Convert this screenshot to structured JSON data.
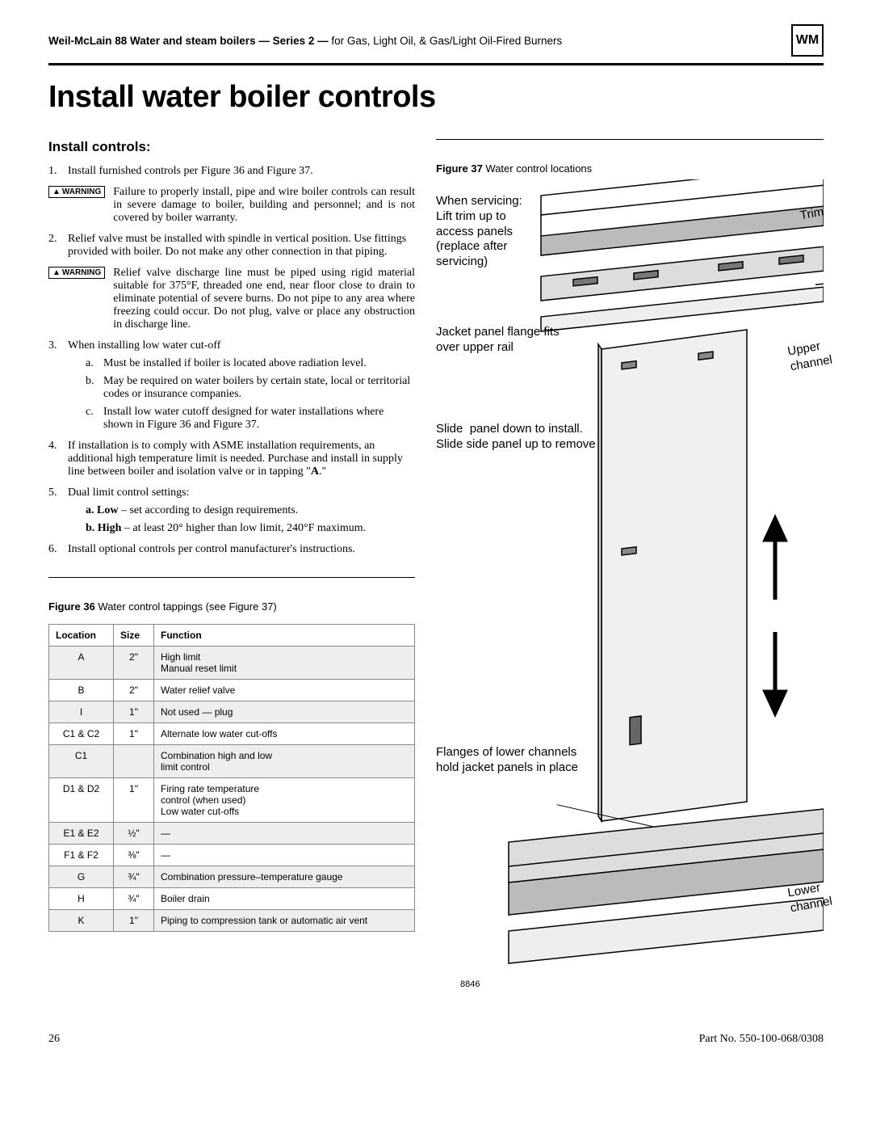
{
  "header": {
    "bold1": "Weil-McLain 88 Water and steam boilers — Series 2 — ",
    "reg1": "for Gas, Light Oil, & Gas/Light Oil-Fired Burners",
    "logo": "WM"
  },
  "page_title": "Install water boiler controls",
  "section_heading": "Install controls:",
  "list": {
    "i1": "Install furnished controls per Figure 36 and Figure 37.",
    "w1": "Failure to properly install, pipe and wire boiler controls can result in severe damage to boiler, building and personnel; and is not covered by boiler warranty.",
    "i2": "Relief valve must be installed with spindle in vertical position. Use fittings provided with boiler. Do not make any other connection in that piping.",
    "w2": "Relief valve discharge line must be piped using rigid material suitable for 375°F, threaded one end, near floor close to drain to eliminate potential of severe burns. Do not pipe to any area where freezing could occur. Do not plug, valve or place any obstruction in discharge line.",
    "i3": "When installing low water cut-off",
    "i3a": "Must be installed if boiler is located above radiation level.",
    "i3b": "May be required on water boilers by certain state, local or territorial codes or insurance companies.",
    "i3c": "Install low water cutoff designed for water installations where shown in Figure 36 and Figure 37.",
    "i4_a": "If installation is to comply with ASME installation requirements, an additional high temperature limit is needed. Purchase and install in supply line between boiler and isolation valve or in tapping \"",
    "i4_b": "A",
    "i4_c": ".\"",
    "i5": "Dual limit control settings:",
    "i5a_b": "a.  Low",
    "i5a_t": " – set according to design requirements.",
    "i5b_b": "b.  High",
    "i5b_t": " – at least 20° higher than low limit, 240°F maximum.",
    "i6": "Install optional controls per control manufacturer's instructions."
  },
  "warning_label": "WARNING",
  "fig36": {
    "caption_b": "Figure 36",
    "caption_t": "   Water control tappings (see Figure 37)",
    "headers": [
      "Location",
      "Size",
      "Function"
    ],
    "rows": [
      {
        "loc": "A",
        "size": "2\"",
        "fn": "High limit\nManual reset limit",
        "shade": true
      },
      {
        "loc": "B",
        "size": "2\"",
        "fn": "Water relief valve",
        "shade": false
      },
      {
        "loc": "I",
        "size": "1\"",
        "fn": "Not used — plug",
        "shade": true
      },
      {
        "loc": "C1 & C2",
        "size": "1\"",
        "fn": "Alternate low water cut-offs",
        "shade": false
      },
      {
        "loc": "C1",
        "size": "",
        "fn": "Combination high and low\nlimit control",
        "shade": true
      },
      {
        "loc": "D1 & D2",
        "size": "1\"",
        "fn": "Firing rate temperature\ncontrol (when used)\nLow water cut-offs",
        "shade": false
      },
      {
        "loc": "E1 & E2",
        "size": "½\"",
        "fn": "—",
        "shade": true
      },
      {
        "loc": "F1 & F2",
        "size": "⅜\"",
        "fn": "—",
        "shade": false
      },
      {
        "loc": "G",
        "size": "¾\"",
        "fn": "Combination pressure–temperature gauge",
        "shade": true
      },
      {
        "loc": "H",
        "size": "¾\"",
        "fn": "Boiler drain",
        "shade": false
      },
      {
        "loc": "K",
        "size": "1\"",
        "fn": "Piping to compression tank or automatic air vent",
        "shade": true
      }
    ]
  },
  "fig37": {
    "caption_b": "Figure 37",
    "caption_t": "   Water control locations",
    "labels": {
      "servicing": "When servicing:\nLift trim up to\naccess panels\n(replace after\nservicing)",
      "jacket": "Jacket panel flange fits\nover upper rail",
      "slide": "Slide  panel down to install.\nSlide side panel up to remove",
      "flanges": "Flanges of lower channels\nhold jacket panels in place",
      "trim": "Trim",
      "upper": "Upper\nchannel",
      "lower": "Lower\nchannel",
      "code": "8846"
    }
  },
  "footer": {
    "page": "26",
    "part": "Part No. 550-100-068/0308"
  }
}
